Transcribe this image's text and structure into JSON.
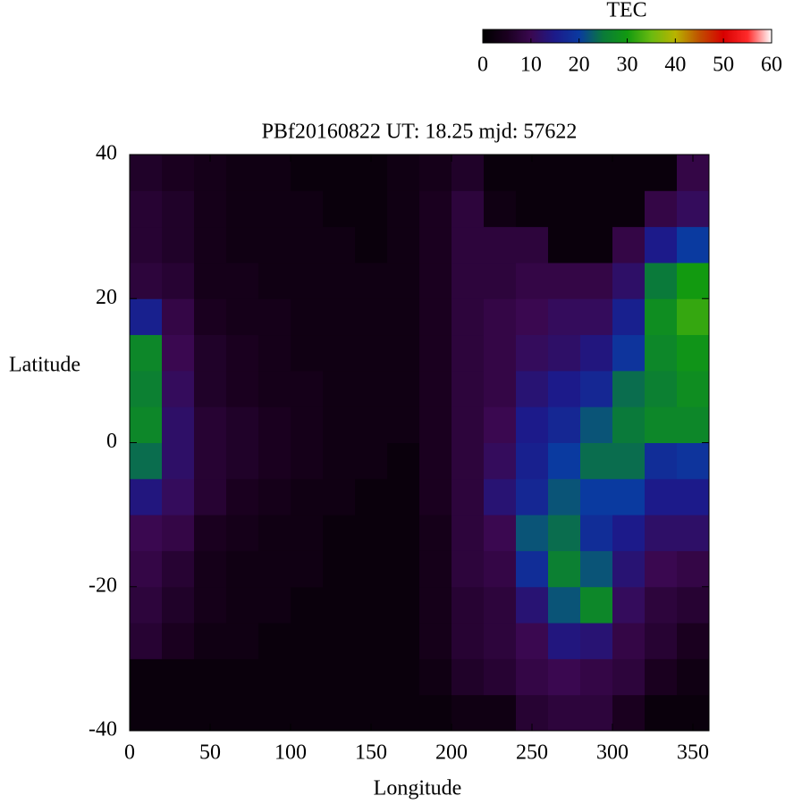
{
  "chart_data": {
    "type": "heatmap",
    "title": "PBf20160822  UT: 18.25  mjd: 57622",
    "xlabel": "Longitude",
    "ylabel": "Latitude",
    "xlim": [
      0,
      360
    ],
    "xticks": [
      0,
      50,
      100,
      150,
      200,
      250,
      300,
      350
    ],
    "ylim": [
      -40,
      40
    ],
    "yticks": [
      -40,
      -20,
      0,
      20,
      40
    ],
    "xbins": [
      0,
      20,
      40,
      60,
      80,
      100,
      120,
      140,
      160,
      180,
      200,
      220,
      240,
      260,
      280,
      300,
      320,
      340,
      360
    ],
    "ybins": [
      -40,
      -35,
      -30,
      -25,
      -20,
      -15,
      -10,
      -5,
      0,
      5,
      10,
      15,
      20,
      25,
      30,
      35,
      40
    ],
    "z": [
      [
        2,
        2,
        7,
        8,
        9,
        10,
        14,
        24,
        27,
        26,
        27,
        16,
        8,
        7,
        7,
        6
      ],
      [
        2,
        2,
        5,
        6,
        7,
        9,
        11,
        12,
        12,
        11,
        10,
        9,
        7,
        6,
        6,
        5
      ],
      [
        2,
        2,
        3,
        4,
        4,
        5,
        7,
        7,
        7,
        6,
        6,
        5,
        4,
        4,
        4,
        4
      ],
      [
        2,
        2,
        3,
        3,
        3,
        4,
        5,
        6,
        6,
        5,
        5,
        4,
        4,
        3,
        3,
        3
      ],
      [
        2,
        2,
        2,
        3,
        3,
        3,
        4,
        5,
        5,
        4,
        4,
        4,
        3,
        3,
        3,
        3
      ],
      [
        2,
        2,
        2,
        2,
        3,
        3,
        3,
        4,
        4,
        4,
        3,
        3,
        3,
        3,
        3,
        2
      ],
      [
        2,
        2,
        2,
        2,
        2,
        2,
        3,
        3,
        3,
        3,
        3,
        3,
        3,
        3,
        2,
        2
      ],
      [
        2,
        2,
        2,
        2,
        2,
        2,
        2,
        3,
        3,
        3,
        3,
        3,
        3,
        2,
        2,
        2
      ],
      [
        2,
        2,
        2,
        2,
        2,
        2,
        2,
        2,
        3,
        3,
        3,
        3,
        3,
        3,
        3,
        3
      ],
      [
        2,
        3,
        4,
        4,
        4,
        4,
        5,
        5,
        5,
        5,
        5,
        5,
        5,
        5,
        5,
        4
      ],
      [
        3,
        6,
        7,
        7,
        8,
        8,
        8,
        8,
        8,
        8,
        8,
        8,
        8,
        8,
        8,
        6
      ],
      [
        3,
        7,
        8,
        8,
        9,
        10,
        13,
        11,
        10,
        9,
        9,
        9,
        8,
        8,
        3,
        2
      ],
      [
        7,
        9,
        10,
        13,
        18,
        22,
        17,
        16,
        15,
        13,
        11,
        10,
        9,
        8,
        2,
        2
      ],
      [
        8,
        10,
        14,
        22,
        26,
        24,
        22,
        20,
        17,
        15,
        12,
        11,
        9,
        2,
        2,
        2
      ],
      [
        8,
        9,
        13,
        27,
        22,
        18,
        20,
        24,
        22,
        17,
        14,
        11,
        9,
        2,
        2,
        2
      ],
      [
        5,
        8,
        9,
        11,
        13,
        15,
        20,
        24,
        25,
        24,
        19,
        16,
        12,
        9,
        2,
        2
      ],
      [
        2,
        5,
        7,
        8,
        10,
        12,
        15,
        18,
        27,
        26,
        27,
        28,
        25,
        15,
        9,
        2
      ],
      [
        2,
        3,
        5,
        7,
        9,
        12,
        15,
        19,
        27,
        28,
        29,
        32,
        30,
        20,
        11,
        9
      ]
    ],
    "colorbar_title": "TEC",
    "clim": [
      0,
      60
    ],
    "cticks": [
      0,
      10,
      20,
      30,
      40,
      50,
      60
    ],
    "colors": [
      "#000000",
      "#1a001f",
      "#3a0850",
      "#1c1a8a",
      "#0a3aa0",
      "#0a7a3a",
      "#129a10",
      "#6aba10",
      "#b8b400",
      "#c05000",
      "#d80000",
      "#ff2a2a",
      "#ffffff"
    ]
  }
}
